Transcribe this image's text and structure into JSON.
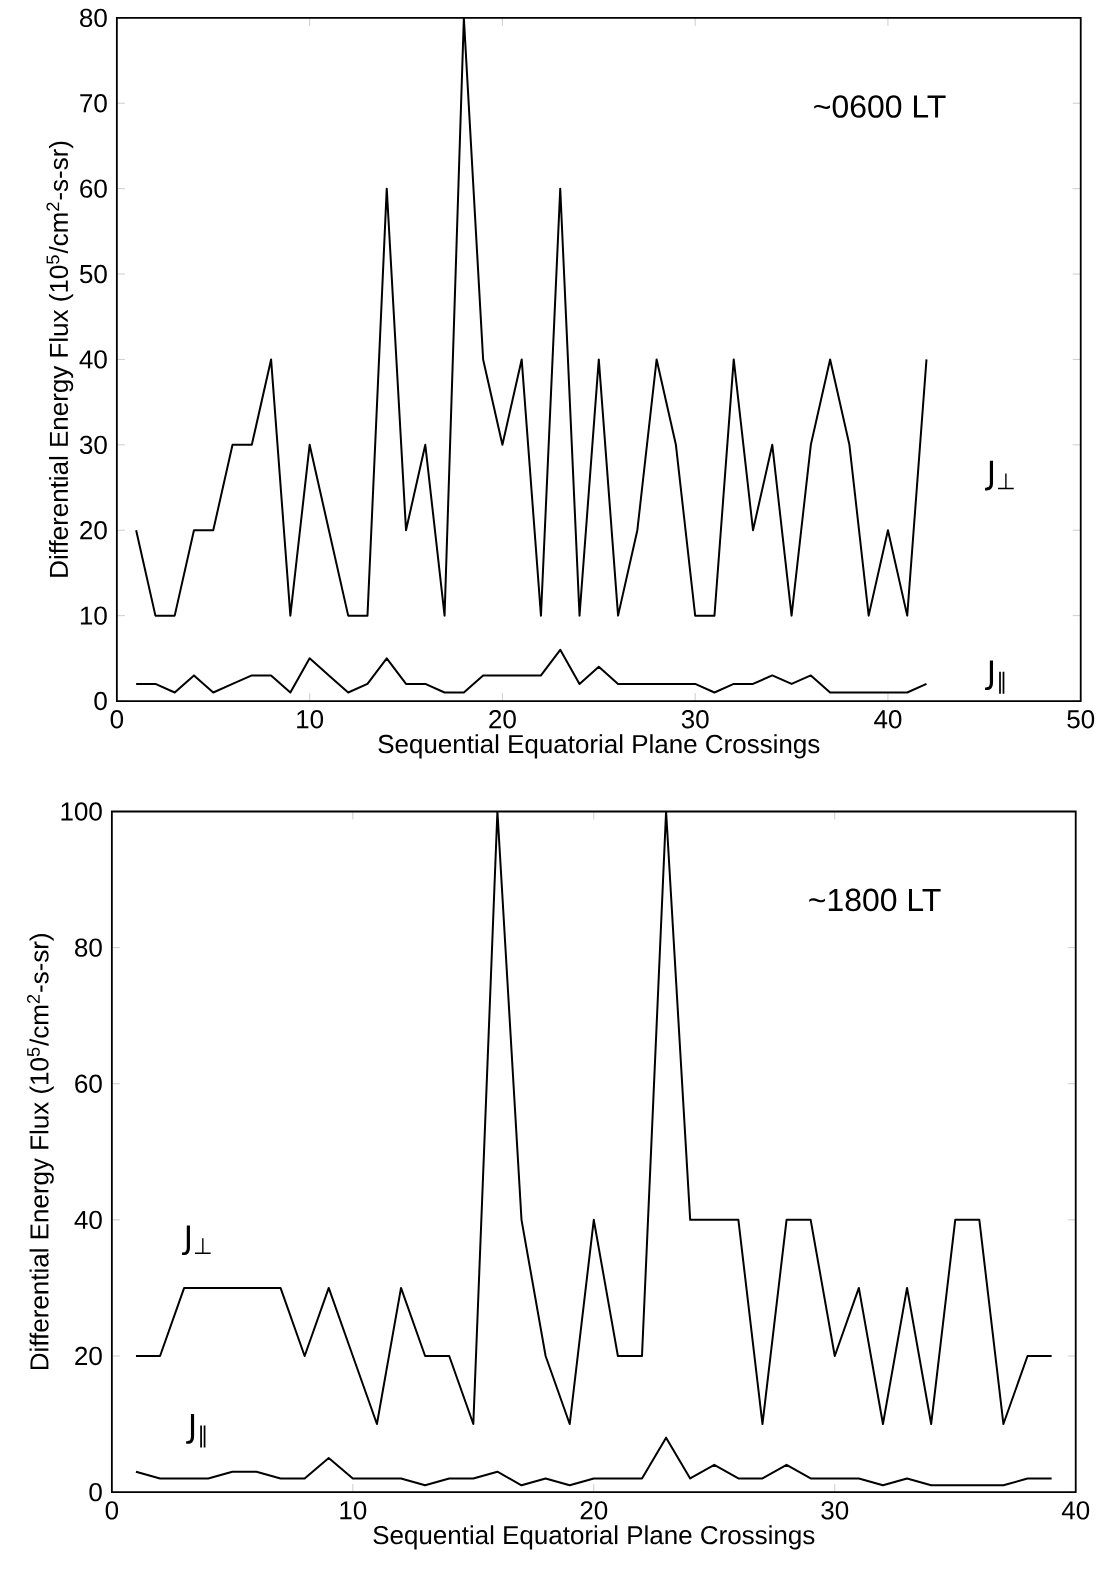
{
  "chart_data": [
    {
      "type": "line",
      "xlabel": "Sequential Equatorial Plane Crossings",
      "ylabel": "Differential Energy Flux (10$^{5}$/cm$^{2}$-s-sr)",
      "annotations": [
        "~0600 LT"
      ],
      "x": [
        1,
        2,
        3,
        4,
        5,
        6,
        7,
        8,
        9,
        10,
        11,
        12,
        13,
        14,
        15,
        16,
        17,
        18,
        19,
        20,
        21,
        22,
        23,
        24,
        25,
        26,
        27,
        28,
        29,
        30,
        31,
        32,
        33,
        34,
        35,
        36,
        37,
        38,
        39,
        40,
        41,
        42
      ],
      "xlim": [
        0,
        50
      ],
      "xticks": [
        0,
        10,
        20,
        30,
        40,
        50
      ],
      "ylim": [
        0,
        80
      ],
      "yticks": [
        0,
        10,
        20,
        30,
        40,
        50,
        60,
        70,
        80
      ],
      "grid": false,
      "legend": false,
      "marker": "none",
      "line_style": "solid",
      "series": [
        {
          "name": "J$_{⊥}$",
          "color": "#000000",
          "values": [
            20,
            10,
            10,
            20,
            20,
            30,
            30,
            40,
            10,
            30,
            20,
            10,
            10,
            60,
            20,
            30,
            10,
            80,
            40,
            30,
            40,
            10,
            60,
            10,
            40,
            10,
            20,
            40,
            30,
            10,
            10,
            40,
            20,
            30,
            10,
            30,
            40,
            30,
            10,
            20,
            10,
            40
          ]
        },
        {
          "name": "J$_{∥}$",
          "color": "#000000",
          "values": [
            2,
            2,
            1,
            3,
            1,
            2,
            3,
            3,
            1,
            5,
            3,
            1,
            2,
            5,
            2,
            2,
            1,
            1,
            3,
            3,
            3,
            3,
            6,
            2,
            4,
            2,
            2,
            2,
            2,
            2,
            1,
            2,
            2,
            3,
            2,
            3,
            1,
            1,
            1,
            1,
            1,
            2
          ]
        }
      ]
    },
    {
      "type": "line",
      "xlabel": "Sequential Equatorial Plane Crossings",
      "ylabel": "Differential Energy Flux (10$^{5}$/cm$^{2}$-s-sr)",
      "annotations": [
        "~1800 LT"
      ],
      "x": [
        1,
        2,
        3,
        4,
        5,
        6,
        7,
        8,
        9,
        10,
        11,
        12,
        13,
        14,
        15,
        16,
        17,
        18,
        19,
        20,
        21,
        22,
        23,
        24,
        25,
        26,
        27,
        28,
        29,
        30,
        31,
        32,
        33,
        34,
        35,
        36,
        37,
        38,
        39
      ],
      "xlim": [
        0,
        40
      ],
      "xticks": [
        0,
        10,
        20,
        30,
        40
      ],
      "ylim": [
        0,
        100
      ],
      "yticks": [
        0,
        20,
        40,
        60,
        80,
        100
      ],
      "grid": false,
      "legend": false,
      "marker": "none",
      "line_style": "solid",
      "series": [
        {
          "name": "J$_{⊥}$",
          "color": "#000000",
          "values": [
            20,
            20,
            30,
            30,
            30,
            30,
            30,
            20,
            30,
            20,
            10,
            30,
            20,
            20,
            10,
            100,
            40,
            20,
            10,
            40,
            20,
            20,
            100,
            40,
            40,
            40,
            10,
            40,
            40,
            20,
            30,
            10,
            30,
            10,
            40,
            40,
            10,
            20,
            20
          ]
        },
        {
          "name": "J$_{∥}$",
          "color": "#000000",
          "values": [
            3,
            2,
            2,
            2,
            3,
            3,
            2,
            2,
            5,
            2,
            2,
            2,
            1,
            2,
            2,
            3,
            1,
            2,
            1,
            2,
            2,
            2,
            8,
            2,
            4,
            2,
            2,
            4,
            2,
            2,
            2,
            1,
            2,
            1,
            1,
            1,
            1,
            2,
            2
          ]
        }
      ]
    }
  ]
}
